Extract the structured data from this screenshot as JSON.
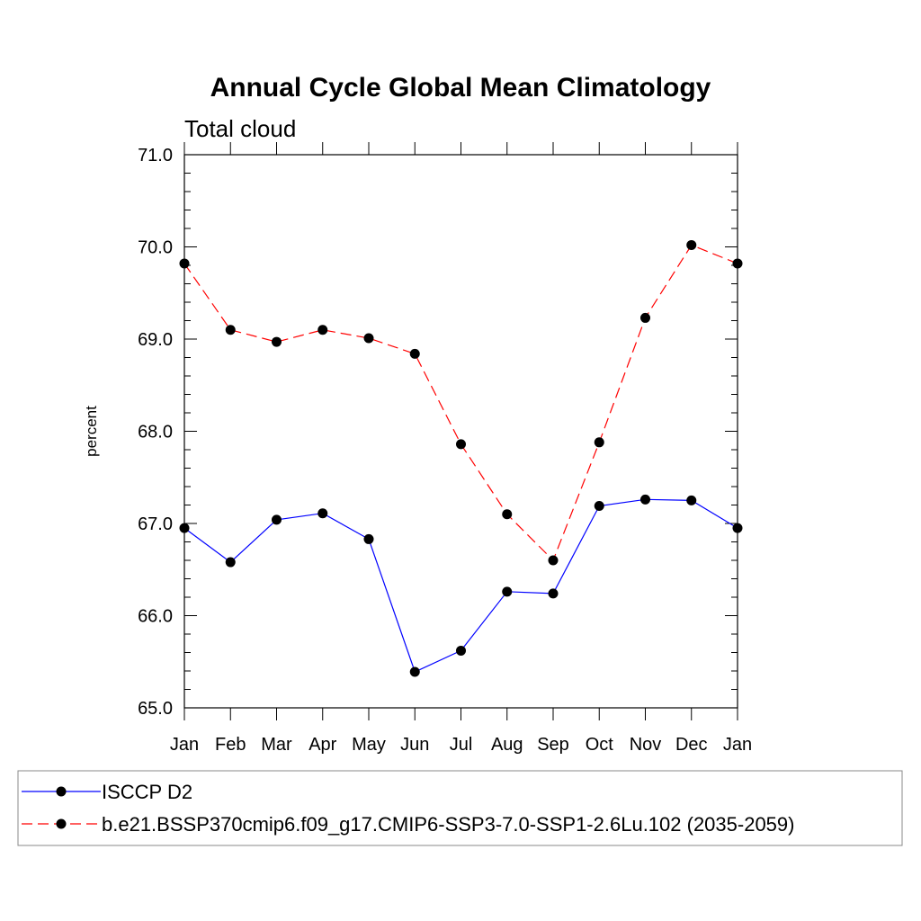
{
  "chart_data": {
    "type": "line",
    "title": "Annual Cycle Global Mean Climatology",
    "subtitle": "Total cloud",
    "ylabel": "percent",
    "xlabel": "",
    "ylim": [
      65.0,
      71.0
    ],
    "y_major_ticks": [
      65.0,
      66.0,
      67.0,
      68.0,
      69.0,
      70.0,
      71.0
    ],
    "y_tick_labels": [
      "65.0",
      "66.0",
      "67.0",
      "68.0",
      "69.0",
      "70.0",
      "71.0"
    ],
    "categories": [
      "Jan",
      "Feb",
      "Mar",
      "Apr",
      "May",
      "Jun",
      "Jul",
      "Aug",
      "Sep",
      "Oct",
      "Nov",
      "Dec",
      "Jan"
    ],
    "series": [
      {
        "name": "ISCCP D2",
        "color": "#0000ff",
        "style": "solid",
        "values": [
          66.95,
          66.58,
          67.04,
          67.11,
          66.83,
          65.39,
          65.62,
          66.26,
          66.24,
          67.19,
          67.26,
          67.25,
          66.95
        ]
      },
      {
        "name": "b.e21.BSSP370cmip6.f09_g17.CMIP6-SSP3-7.0-SSP1-2.6Lu.102 (2035-2059)",
        "color": "#ff0000",
        "style": "dashed",
        "values": [
          69.82,
          69.1,
          68.97,
          69.1,
          69.01,
          68.84,
          67.86,
          67.1,
          66.6,
          67.88,
          69.23,
          70.02,
          69.82
        ]
      }
    ],
    "legend_position": "bottom"
  }
}
